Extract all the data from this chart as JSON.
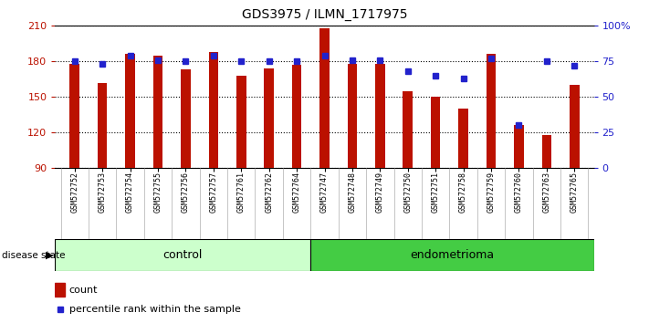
{
  "title": "GDS3975 / ILMN_1717975",
  "samples": [
    "GSM572752",
    "GSM572753",
    "GSM572754",
    "GSM572755",
    "GSM572756",
    "GSM572757",
    "GSM572761",
    "GSM572762",
    "GSM572764",
    "GSM572747",
    "GSM572748",
    "GSM572749",
    "GSM572750",
    "GSM572751",
    "GSM572758",
    "GSM572759",
    "GSM572760",
    "GSM572763",
    "GSM572765"
  ],
  "counts": [
    178,
    162,
    186,
    185,
    173,
    188,
    168,
    174,
    177,
    208,
    178,
    178,
    155,
    150,
    140,
    186,
    126,
    118,
    160
  ],
  "percentiles": [
    75,
    73,
    79,
    76,
    75,
    79,
    75,
    75,
    75,
    79,
    76,
    76,
    68,
    65,
    63,
    77,
    30,
    75,
    72
  ],
  "groups": [
    "control",
    "control",
    "control",
    "control",
    "control",
    "control",
    "control",
    "control",
    "control",
    "endometrioma",
    "endometrioma",
    "endometrioma",
    "endometrioma",
    "endometrioma",
    "endometrioma",
    "endometrioma",
    "endometrioma",
    "endometrioma",
    "endometrioma"
  ],
  "ymin": 90,
  "ymax": 210,
  "yticks_left": [
    90,
    120,
    150,
    180,
    210
  ],
  "yticks_right": [
    0,
    25,
    50,
    75,
    100
  ],
  "bar_color": "#bb1100",
  "dot_color": "#2222cc",
  "control_fill": "#ccffcc",
  "endometrioma_fill": "#44cc44",
  "ticklabel_bg": "#cccccc",
  "title_fontsize": 10,
  "bar_label_fontsize": 6,
  "group_fontsize": 9,
  "legend_fontsize": 8,
  "bar_width": 0.35
}
